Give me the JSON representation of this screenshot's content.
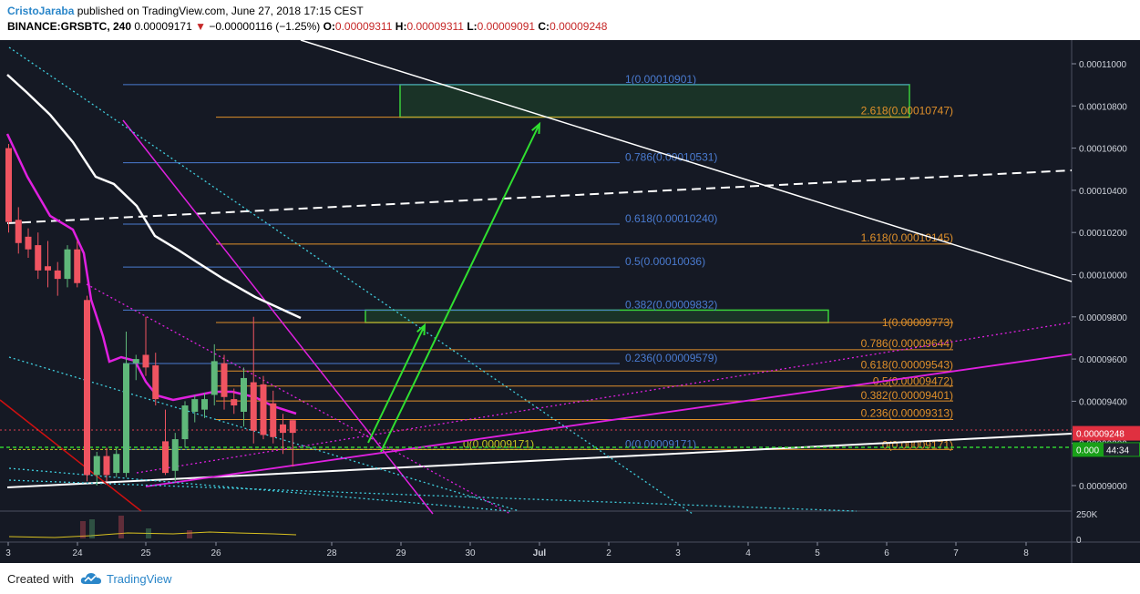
{
  "header": {
    "author": "CristoJaraba",
    "published": " published on TradingView.com, June 27, 2018 17:15 CEST",
    "symbol": "BINANCE:GRSBTC, 240",
    "last": "0.00009171",
    "change": "−0.00000116 (−1.25%)",
    "o_label": "O:",
    "o_value": "0.00009311",
    "h_label": "H:",
    "h_value": "0.00009311",
    "l_label": "L:",
    "l_value": "0.00009091",
    "c_label": "C:",
    "c_value": "0.00009248"
  },
  "footer": {
    "created_with": "Created with",
    "brand": "TradingView"
  },
  "colors": {
    "up": "#5fb87a",
    "down": "#ef5461",
    "blue_fib": "#4a7bd0",
    "orange_fib": "#e0902a",
    "magenta": "#e020e0",
    "cyan": "#40d0e0",
    "green_arrow": "#30e030",
    "white": "#ffffff",
    "red_line": "#d01010",
    "yellow_dash": "#c8c820",
    "bg": "#151924"
  },
  "price_axis": {
    "ticks": [
      "0.00011000",
      "0.00010800",
      "0.00010600",
      "0.00010400",
      "0.00010200",
      "0.00010000",
      "0.00009800",
      "0.00009600",
      "0.00009400",
      "0.00009200",
      "0.00009000"
    ],
    "tick_values": [
      0.00011,
      0.000108,
      0.000106,
      0.000104,
      0.000102,
      0.0001,
      9.8e-05,
      9.6e-05,
      9.4e-05,
      9.2e-05,
      9e-05
    ],
    "current_price_label": "0.00009248",
    "current_price": 9.248e-05,
    "time_label_prefix": "0.000",
    "time_label": "44:34",
    "time_price": 9.171e-05,
    "volume_label": "250K"
  },
  "time_axis": {
    "labels": [
      "3",
      "24",
      "25",
      "26",
      "28",
      "29",
      "30",
      "Jul",
      "2",
      "3",
      "4",
      "5",
      "6",
      "7",
      "8"
    ],
    "bold": "Jul"
  },
  "chart_data": {
    "type": "candlestick",
    "interval": "240",
    "symbol": "GRSBTC",
    "candles": [
      {
        "o": 0.000106,
        "h": 0.0001062,
        "l": 0.000102,
        "c": 0.0001025
      },
      {
        "o": 0.0001026,
        "h": 0.0001032,
        "l": 0.000101,
        "c": 0.0001015
      },
      {
        "o": 0.0001018,
        "h": 0.0001022,
        "l": 0.0001008,
        "c": 0.0001012
      },
      {
        "o": 0.0001014,
        "h": 0.000102,
        "l": 9.98e-05,
        "c": 0.0001002
      },
      {
        "o": 0.0001004,
        "h": 0.0001016,
        "l": 9.94e-05,
        "c": 0.0001002
      },
      {
        "o": 0.0001002,
        "h": 0.0001006,
        "l": 9.9e-05,
        "c": 9.98e-05
      },
      {
        "o": 9.98e-05,
        "h": 0.0001014,
        "l": 9.94e-05,
        "c": 0.0001012
      },
      {
        "o": 0.0001012,
        "h": 0.0001016,
        "l": 9.94e-05,
        "c": 9.96e-05
      },
      {
        "o": 9.88e-05,
        "h": 9.9e-05,
        "l": 9.02e-05,
        "c": 9.05e-05
      },
      {
        "o": 9.05e-05,
        "h": 9.16e-05,
        "l": 9e-05,
        "c": 9.14e-05
      },
      {
        "o": 9.14e-05,
        "h": 9.18e-05,
        "l": 9.02e-05,
        "c": 9.05e-05
      },
      {
        "o": 9.06e-05,
        "h": 9.18e-05,
        "l": 9.04e-05,
        "c": 9.15e-05
      },
      {
        "o": 9.06e-05,
        "h": 9.73e-05,
        "l": 9.04e-05,
        "c": 9.58e-05
      },
      {
        "o": 9.58e-05,
        "h": 9.62e-05,
        "l": 9.5e-05,
        "c": 9.6e-05
      },
      {
        "o": 9.62e-05,
        "h": 9.8e-05,
        "l": 9.52e-05,
        "c": 9.56e-05
      },
      {
        "o": 9.57e-05,
        "h": 9.63e-05,
        "l": 9.38e-05,
        "c": 9.41e-05
      },
      {
        "o": 9.21e-05,
        "h": 9.36e-05,
        "l": 9.05e-05,
        "c": 9.06e-05
      },
      {
        "o": 9.07e-05,
        "h": 9.25e-05,
        "l": 9.02e-05,
        "c": 9.22e-05
      },
      {
        "o": 9.22e-05,
        "h": 9.4e-05,
        "l": 9.18e-05,
        "c": 9.38e-05
      },
      {
        "o": 9.35e-05,
        "h": 9.43e-05,
        "l": 9.3e-05,
        "c": 9.41e-05
      },
      {
        "o": 9.36e-05,
        "h": 9.44e-05,
        "l": 9.32e-05,
        "c": 9.41e-05
      },
      {
        "o": 9.43e-05,
        "h": 9.67e-05,
        "l": 9.38e-05,
        "c": 9.59e-05
      },
      {
        "o": 9.58e-05,
        "h": 9.62e-05,
        "l": 9.36e-05,
        "c": 9.42e-05
      },
      {
        "o": 9.41e-05,
        "h": 9.46e-05,
        "l": 9.34e-05,
        "c": 9.38e-05
      },
      {
        "o": 9.35e-05,
        "h": 9.56e-05,
        "l": 9.28e-05,
        "c": 9.51e-05
      },
      {
        "o": 9.49e-05,
        "h": 9.8e-05,
        "l": 9.2e-05,
        "c": 9.26e-05
      },
      {
        "o": 9.48e-05,
        "h": 9.52e-05,
        "l": 9.22e-05,
        "c": 9.24e-05
      },
      {
        "o": 9.39e-05,
        "h": 9.45e-05,
        "l": 9.2e-05,
        "c": 9.23e-05
      },
      {
        "o": 9.29e-05,
        "h": 9.34e-05,
        "l": 9.15e-05,
        "c": 9.25e-05
      },
      {
        "o": 9.31e-05,
        "h": 9.31e-05,
        "l": 9.09e-05,
        "c": 9.25e-05
      }
    ],
    "fib_levels": [
      {
        "label": "1(0.00010901)",
        "price": 0.00010901,
        "color": "blue"
      },
      {
        "label": "2.618(0.00010747)",
        "price": 0.00010747,
        "color": "orange"
      },
      {
        "label": "0.786(0.00010531)",
        "price": 0.00010531,
        "color": "blue"
      },
      {
        "label": "0.618(0.00010240)",
        "price": 0.0001024,
        "color": "blue"
      },
      {
        "label": "1.618(0.00010145)",
        "price": 0.00010145,
        "color": "orange"
      },
      {
        "label": "0.5(0.00010036)",
        "price": 0.00010036,
        "color": "blue"
      },
      {
        "label": "0.382(0.00009832)",
        "price": 9.832e-05,
        "color": "blue"
      },
      {
        "label": "1(0.00009773)",
        "price": 9.773e-05,
        "color": "orange"
      },
      {
        "label": "0.786(0.00009644)",
        "price": 9.644e-05,
        "color": "orange"
      },
      {
        "label": "0.236(0.00009579)",
        "price": 9.579e-05,
        "color": "blue"
      },
      {
        "label": "0.618(0.00009543)",
        "price": 9.543e-05,
        "color": "orange"
      },
      {
        "label": "0.5(0.00009472)",
        "price": 9.472e-05,
        "color": "orange"
      },
      {
        "label": "0.382(0.00009401)",
        "price": 9.401e-05,
        "color": "orange"
      },
      {
        "label": "0.236(0.00009313)",
        "price": 9.313e-05,
        "color": "orange"
      },
      {
        "label": "0(0.00009171)",
        "price": 9.171e-05,
        "color": "blue"
      },
      {
        "label": "0(0.00009171)",
        "price": 9.171e-05,
        "color": "orange"
      },
      {
        "label": "0(0.00009171)",
        "price": 9.171e-05,
        "color": "yellow"
      }
    ],
    "target_zones": [
      {
        "price_top": 0.00010901,
        "price_bottom": 0.00010747
      },
      {
        "price_top": 9.832e-05,
        "price_bottom": 9.773e-05
      }
    ]
  }
}
